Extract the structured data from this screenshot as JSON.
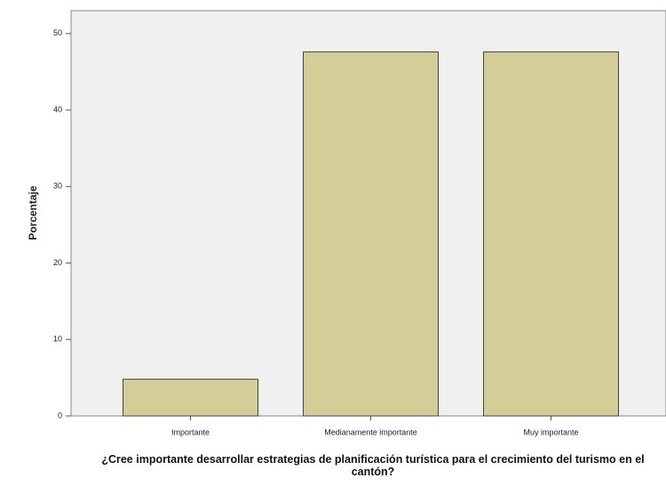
{
  "chart_data": {
    "type": "bar",
    "categories": [
      "Importante",
      "Medianamente importante",
      "Muy importante"
    ],
    "values": [
      4.8,
      47.6,
      47.6
    ],
    "color": "#d3ce97",
    "ylabel": "Porcentaje",
    "xlabel": "¿Cree importante desarrollar estrategias de planificación turística para el crecimiento del turismo en el cantón?",
    "ylim": [
      0,
      53
    ],
    "yticks": [
      0,
      10,
      20,
      30,
      40,
      50
    ],
    "grid": false
  }
}
